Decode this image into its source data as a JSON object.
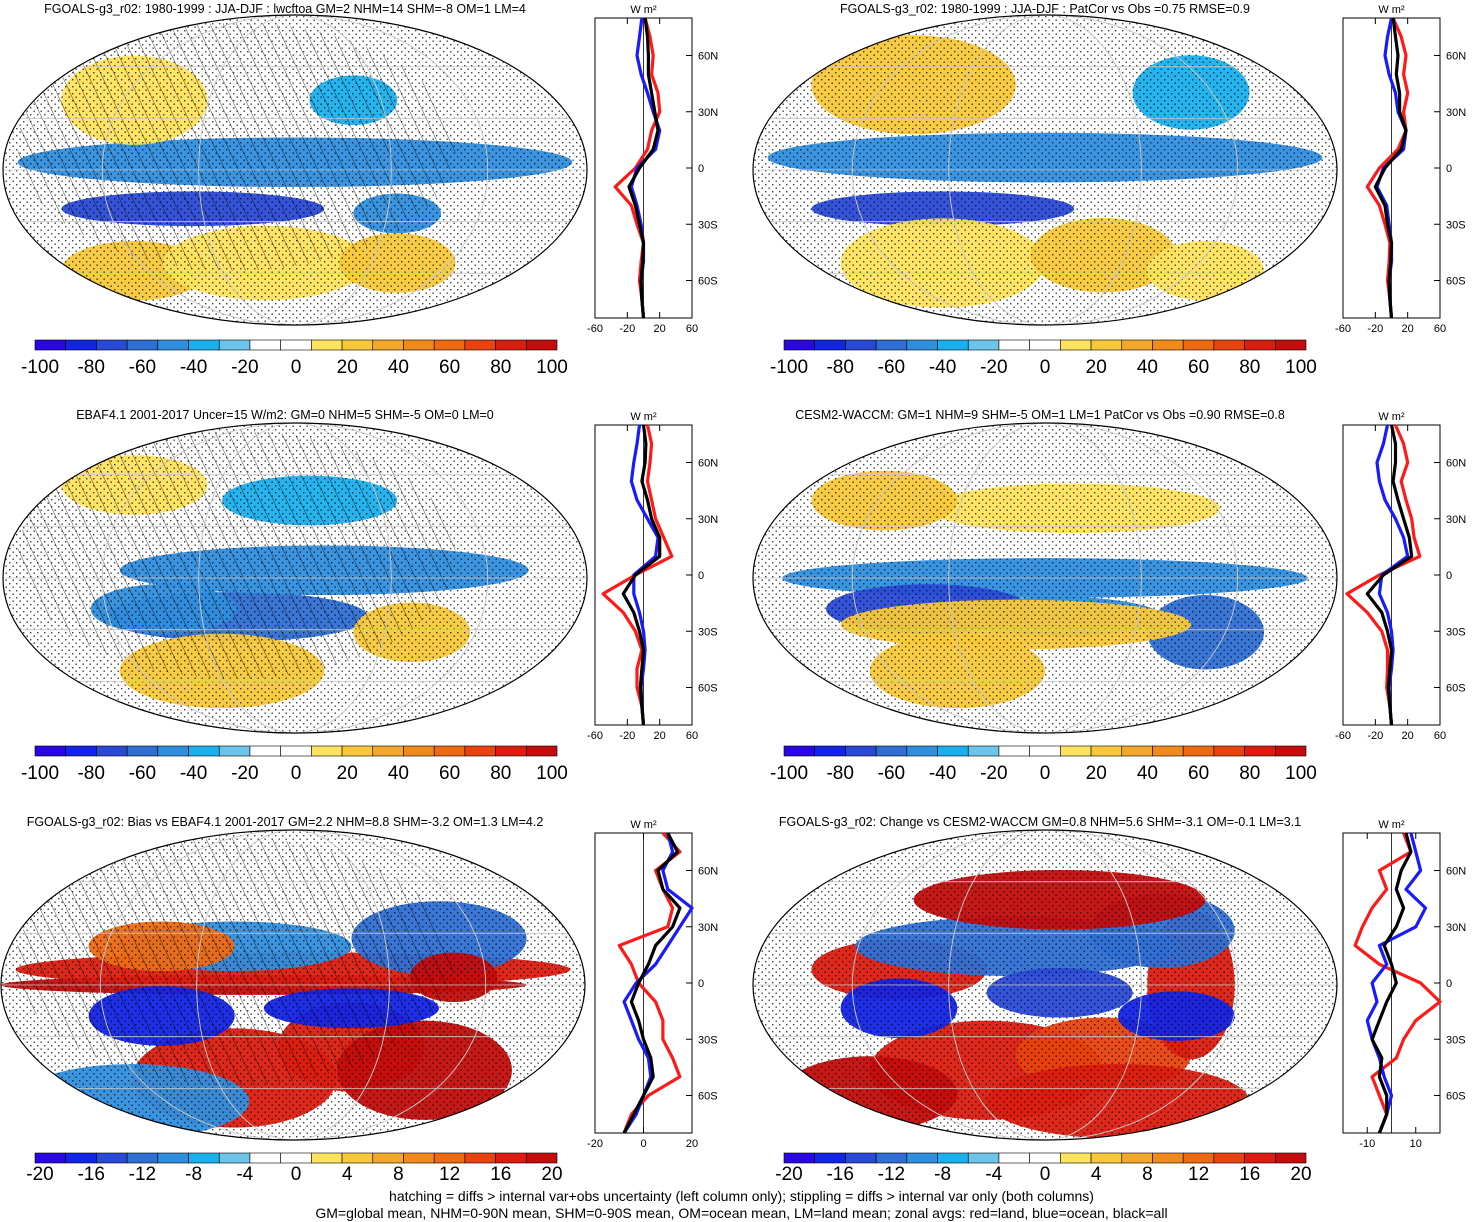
{
  "colors": {
    "land": "#ff1a1a",
    "ocean": "#1a1aff",
    "all": "#000000",
    "palette": [
      "#2a07e0",
      "#1224e6",
      "#2a4ad6",
      "#2f6fd4",
      "#2f8ede",
      "#1ab0ee",
      "#6cc4ea",
      "#ffffff",
      "#ffffff",
      "#ffe35e",
      "#f8c83a",
      "#f3a72b",
      "#f08a1c",
      "#ee6a12",
      "#e8420e",
      "#dc1c10",
      "#c40c0c"
    ]
  },
  "footer": {
    "line1": "hatching = diffs > internal var+obs uncertainty (left column only); stippling = diffs > internal var only (both columns)",
    "line2": "GM=global mean, NHM=0-90N mean, SHM=0-90S mean, OM=ocean mean, LM=land mean; zonal avgs: red=land, blue=ocean, black=all"
  },
  "chart_data": [
    {
      "type": "heatmap",
      "title": "FGOALS-g3_r02: 1980-1999 : JJA-DJF : lwcftoa GM=2 NHM=14 SHM=-8 OM=1 LM=4",
      "colorbar_labels": [
        "-100",
        "-80",
        "-60",
        "-40",
        "-20",
        "0",
        "20",
        "40",
        "60",
        "80",
        "100"
      ],
      "zonal": {
        "unit_label": "W m²",
        "xticks": [
          "-60",
          "-20",
          "20",
          "60"
        ],
        "xlim": [
          -60,
          60
        ],
        "lat_labels": [
          "60N",
          "30N",
          "0",
          "30S",
          "60S"
        ],
        "lat": [
          80,
          70,
          60,
          50,
          40,
          30,
          20,
          10,
          0,
          -10,
          -20,
          -30,
          -40,
          -50,
          -60,
          -70,
          -80
        ],
        "series": [
          {
            "name": "land",
            "values": [
              2,
              8,
              12,
              10,
              18,
              20,
              10,
              5,
              -10,
              -35,
              -15,
              -8,
              0,
              -3,
              -5,
              -2,
              0
            ]
          },
          {
            "name": "ocean",
            "values": [
              -2,
              -5,
              -8,
              -3,
              5,
              12,
              20,
              15,
              -8,
              -15,
              -8,
              -3,
              0,
              0,
              -3,
              -2,
              0
            ]
          },
          {
            "name": "all",
            "values": [
              2,
              5,
              6,
              6,
              10,
              14,
              18,
              12,
              -5,
              -18,
              -10,
              -5,
              0,
              -1,
              -3,
              -2,
              0
            ]
          }
        ]
      }
    },
    {
      "type": "heatmap",
      "title": "FGOALS-g3_r02: 1980-1999 : JJA-DJF : PatCor vs Obs =0.75 RMSE=0.9",
      "colorbar_labels": [
        "-100",
        "-80",
        "-60",
        "-40",
        "-20",
        "0",
        "20",
        "40",
        "60",
        "80",
        "100"
      ],
      "zonal": {
        "unit_label": "W m²",
        "xticks": [
          "-60",
          "-20",
          "20",
          "60"
        ],
        "xlim": [
          -60,
          60
        ],
        "lat_labels": [
          "60N",
          "30N",
          "0",
          "30S",
          "60S"
        ],
        "lat": [
          80,
          70,
          60,
          50,
          40,
          30,
          20,
          10,
          0,
          -10,
          -20,
          -30,
          -40,
          -50,
          -60,
          -70,
          -80
        ],
        "series": [
          {
            "name": "land",
            "values": [
              2,
              12,
              18,
              15,
              20,
              15,
              18,
              8,
              -15,
              -30,
              -15,
              -8,
              -2,
              -3,
              -5,
              -2,
              0
            ]
          },
          {
            "name": "ocean",
            "values": [
              0,
              -5,
              -8,
              -3,
              5,
              8,
              18,
              15,
              -10,
              -18,
              -6,
              -3,
              0,
              0,
              -3,
              -2,
              0
            ]
          },
          {
            "name": "all",
            "values": [
              2,
              5,
              8,
              6,
              10,
              10,
              18,
              12,
              -8,
              -20,
              -8,
              -5,
              0,
              -1,
              -3,
              -2,
              0
            ]
          }
        ]
      }
    },
    {
      "type": "heatmap",
      "title": "EBAF4.1 2001-2017 Uncer=15 W/m2: GM=0 NHM=5 SHM=-5 OM=0 LM=0",
      "colorbar_labels": [
        "-100",
        "-80",
        "-60",
        "-40",
        "-20",
        "0",
        "20",
        "40",
        "60",
        "80",
        "100"
      ],
      "zonal": {
        "unit_label": "W m²",
        "xticks": [
          "-60",
          "-20",
          "20",
          "60"
        ],
        "xlim": [
          -60,
          60
        ],
        "lat_labels": [
          "60N",
          "30N",
          "0",
          "30S",
          "60S"
        ],
        "lat": [
          80,
          70,
          60,
          50,
          40,
          30,
          20,
          10,
          0,
          -10,
          -20,
          -30,
          -40,
          -50,
          -60,
          -70,
          -80
        ],
        "series": [
          {
            "name": "land",
            "values": [
              5,
              10,
              8,
              5,
              10,
              15,
              25,
              35,
              -10,
              -50,
              -25,
              -10,
              -2,
              -8,
              -8,
              -2,
              0
            ]
          },
          {
            "name": "ocean",
            "values": [
              -5,
              -8,
              -12,
              -15,
              -8,
              5,
              18,
              15,
              -12,
              -12,
              -5,
              0,
              2,
              0,
              -3,
              -2,
              0
            ]
          },
          {
            "name": "all",
            "values": [
              0,
              3,
              2,
              -2,
              5,
              10,
              20,
              20,
              -10,
              -25,
              -12,
              -5,
              0,
              -2,
              -4,
              -2,
              0
            ]
          }
        ]
      }
    },
    {
      "type": "heatmap",
      "title": "CESM2-WACCM: GM=1 NHM=9 SHM=-5 OM=1 LM=1 PatCor vs Obs =0.90 RMSE=0.8",
      "colorbar_labels": [
        "-100",
        "-80",
        "-60",
        "-40",
        "-20",
        "0",
        "20",
        "40",
        "60",
        "80",
        "100"
      ],
      "zonal": {
        "unit_label": "W m²",
        "xticks": [
          "-60",
          "-20",
          "20",
          "60"
        ],
        "xlim": [
          -60,
          60
        ],
        "lat_labels": [
          "60N",
          "30N",
          "0",
          "30S",
          "60S"
        ],
        "lat": [
          80,
          70,
          60,
          50,
          40,
          30,
          20,
          10,
          0,
          -10,
          -20,
          -30,
          -40,
          -50,
          -60,
          -70,
          -80
        ],
        "series": [
          {
            "name": "land",
            "values": [
              5,
              15,
              20,
              12,
              18,
              25,
              28,
              35,
              -15,
              -55,
              -30,
              -12,
              -5,
              -5,
              -6,
              -2,
              0
            ]
          },
          {
            "name": "ocean",
            "values": [
              -5,
              -10,
              -18,
              -15,
              -8,
              5,
              15,
              20,
              -12,
              -15,
              -5,
              0,
              2,
              0,
              -3,
              -2,
              0
            ]
          },
          {
            "name": "all",
            "values": [
              0,
              5,
              5,
              2,
              8,
              15,
              22,
              25,
              -10,
              -30,
              -12,
              -5,
              0,
              -2,
              -4,
              -2,
              0
            ]
          }
        ]
      }
    },
    {
      "type": "heatmap",
      "title": "FGOALS-g3_r02: Bias vs EBAF4.1 2001-2017 GM=2.2 NHM=8.8 SHM=-3.2 OM=1.3 LM=4.2",
      "colorbar_labels": [
        "-20",
        "-16",
        "-12",
        "-8",
        "-4",
        "0",
        "4",
        "8",
        "12",
        "16",
        "20"
      ],
      "zonal": {
        "unit_label": "W m²",
        "xticks": [
          "-20",
          "0",
          "20"
        ],
        "xlim": [
          -20,
          20
        ],
        "lat_labels": [
          "60N",
          "30N",
          "0",
          "30S",
          "60S"
        ],
        "lat": [
          80,
          70,
          60,
          50,
          40,
          30,
          20,
          10,
          0,
          -10,
          -20,
          -30,
          -40,
          -50,
          -60,
          -70,
          -80
        ],
        "series": [
          {
            "name": "land",
            "values": [
              8,
              15,
              5,
              8,
              12,
              10,
              -10,
              -5,
              -2,
              5,
              8,
              8,
              12,
              15,
              2,
              -5,
              -8
            ]
          },
          {
            "name": "ocean",
            "values": [
              10,
              12,
              8,
              10,
              20,
              15,
              10,
              5,
              -3,
              -8,
              -5,
              -2,
              2,
              3,
              0,
              -3,
              -8
            ]
          },
          {
            "name": "all",
            "values": [
              10,
              14,
              6,
              8,
              15,
              12,
              5,
              2,
              -2,
              -5,
              -2,
              0,
              3,
              4,
              0,
              -4,
              -8
            ]
          }
        ]
      }
    },
    {
      "type": "heatmap",
      "title": "FGOALS-g3_r02: Change vs CESM2-WACCM GM=0.8 NHM=5.6 SHM=-3.1 OM=-0.1 LM=3.1",
      "colorbar_labels": [
        "-20",
        "-16",
        "-12",
        "-8",
        "-4",
        "0",
        "4",
        "8",
        "12",
        "16",
        "20"
      ],
      "zonal": {
        "unit_label": "W m²",
        "xticks": [
          "-10",
          "10"
        ],
        "xlim": [
          -20,
          20
        ],
        "lat_labels": [
          "60N",
          "30N",
          "0",
          "30S",
          "60S"
        ],
        "lat": [
          80,
          70,
          60,
          50,
          40,
          30,
          20,
          10,
          0,
          -10,
          -20,
          -30,
          -40,
          -50,
          -60,
          -70,
          -80
        ],
        "series": [
          {
            "name": "land",
            "values": [
              5,
              8,
              -5,
              -2,
              -8,
              -12,
              -15,
              -5,
              12,
              20,
              10,
              5,
              2,
              -8,
              -5,
              -2,
              -5
            ]
          },
          {
            "name": "ocean",
            "values": [
              8,
              10,
              12,
              6,
              14,
              10,
              -5,
              -2,
              -8,
              -6,
              -10,
              -8,
              -5,
              -3,
              0,
              -2,
              -5
            ]
          },
          {
            "name": "all",
            "values": [
              6,
              8,
              4,
              2,
              5,
              2,
              -3,
              0,
              2,
              -2,
              -5,
              -8,
              -4,
              -5,
              -2,
              -2,
              -5
            ]
          }
        ]
      }
    }
  ]
}
